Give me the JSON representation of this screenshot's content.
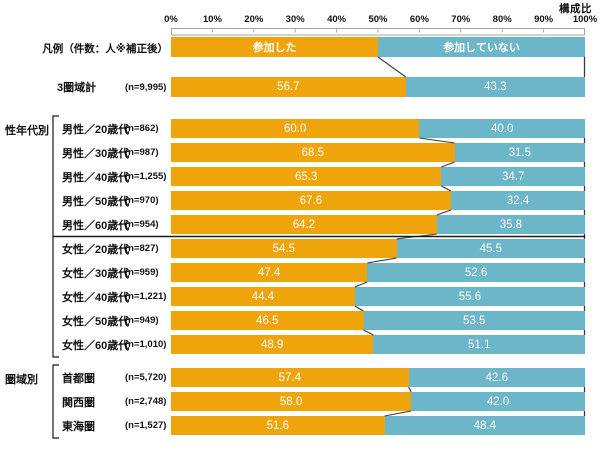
{
  "header": {
    "title": "構成比"
  },
  "axis": {
    "tick_labels": [
      "0%",
      "10%",
      "20%",
      "30%",
      "40%",
      "50%",
      "60%",
      "70%",
      "80%",
      "90%",
      "100%"
    ],
    "min": 0,
    "max": 100
  },
  "legend": {
    "label": "凡例（件数：人※補正後）",
    "items": [
      {
        "name": "参加した",
        "split": 50
      },
      {
        "name": "参加していない",
        "split": 50
      }
    ]
  },
  "colors": {
    "series": [
      "#F0A40C",
      "#6CB6CA"
    ],
    "connector": "#3a3a3a",
    "divider": "#1a1a1a",
    "bracket": "#1a1a1a",
    "ruler_border": "#a6a6a6",
    "text": "#111111",
    "value_text": "#ffffff"
  },
  "chart_data": {
    "type": "bar",
    "orientation": "horizontal-stacked",
    "unit": "%",
    "xlim": [
      0,
      100
    ],
    "title": "構成比",
    "series_names": [
      "参加した",
      "参加していない"
    ],
    "groups": [
      {
        "label": "",
        "rows": [
          {
            "label": "3圏域計",
            "n": "(n=9,995)",
            "values": [
              56.7,
              43.3
            ]
          }
        ]
      },
      {
        "label": "性年代別",
        "bracket": true,
        "divider_after_row": 4,
        "rows": [
          {
            "label": "男性／20歳代",
            "n": "(n=862)",
            "values": [
              60.0,
              40.0
            ]
          },
          {
            "label": "男性／30歳代",
            "n": "(n=987)",
            "values": [
              68.5,
              31.5
            ]
          },
          {
            "label": "男性／40歳代",
            "n": "(n=1,255)",
            "values": [
              65.3,
              34.7
            ]
          },
          {
            "label": "男性／50歳代",
            "n": "(n=970)",
            "values": [
              67.6,
              32.4
            ]
          },
          {
            "label": "男性／60歳代",
            "n": "(n=954)",
            "values": [
              64.2,
              35.8
            ]
          },
          {
            "label": "女性／20歳代",
            "n": "(n=827)",
            "values": [
              54.5,
              45.5
            ]
          },
          {
            "label": "女性／30歳代",
            "n": "(n=959)",
            "values": [
              47.4,
              52.6
            ]
          },
          {
            "label": "女性／40歳代",
            "n": "(n=1,221)",
            "values": [
              44.4,
              55.6
            ]
          },
          {
            "label": "女性／50歳代",
            "n": "(n=949)",
            "values": [
              46.5,
              53.5
            ]
          },
          {
            "label": "女性／60歳代",
            "n": "(n=1,010)",
            "values": [
              48.9,
              51.1
            ]
          }
        ]
      },
      {
        "label": "圏域別",
        "bracket": true,
        "rows": [
          {
            "label": "首都圏",
            "n": "(n=5,720)",
            "values": [
              57.4,
              42.6
            ]
          },
          {
            "label": "関西圏",
            "n": "(n=2,748)",
            "values": [
              58.0,
              42.0
            ]
          },
          {
            "label": "東海圏",
            "n": "(n=1,527)",
            "values": [
              51.6,
              48.4
            ]
          }
        ]
      }
    ]
  }
}
